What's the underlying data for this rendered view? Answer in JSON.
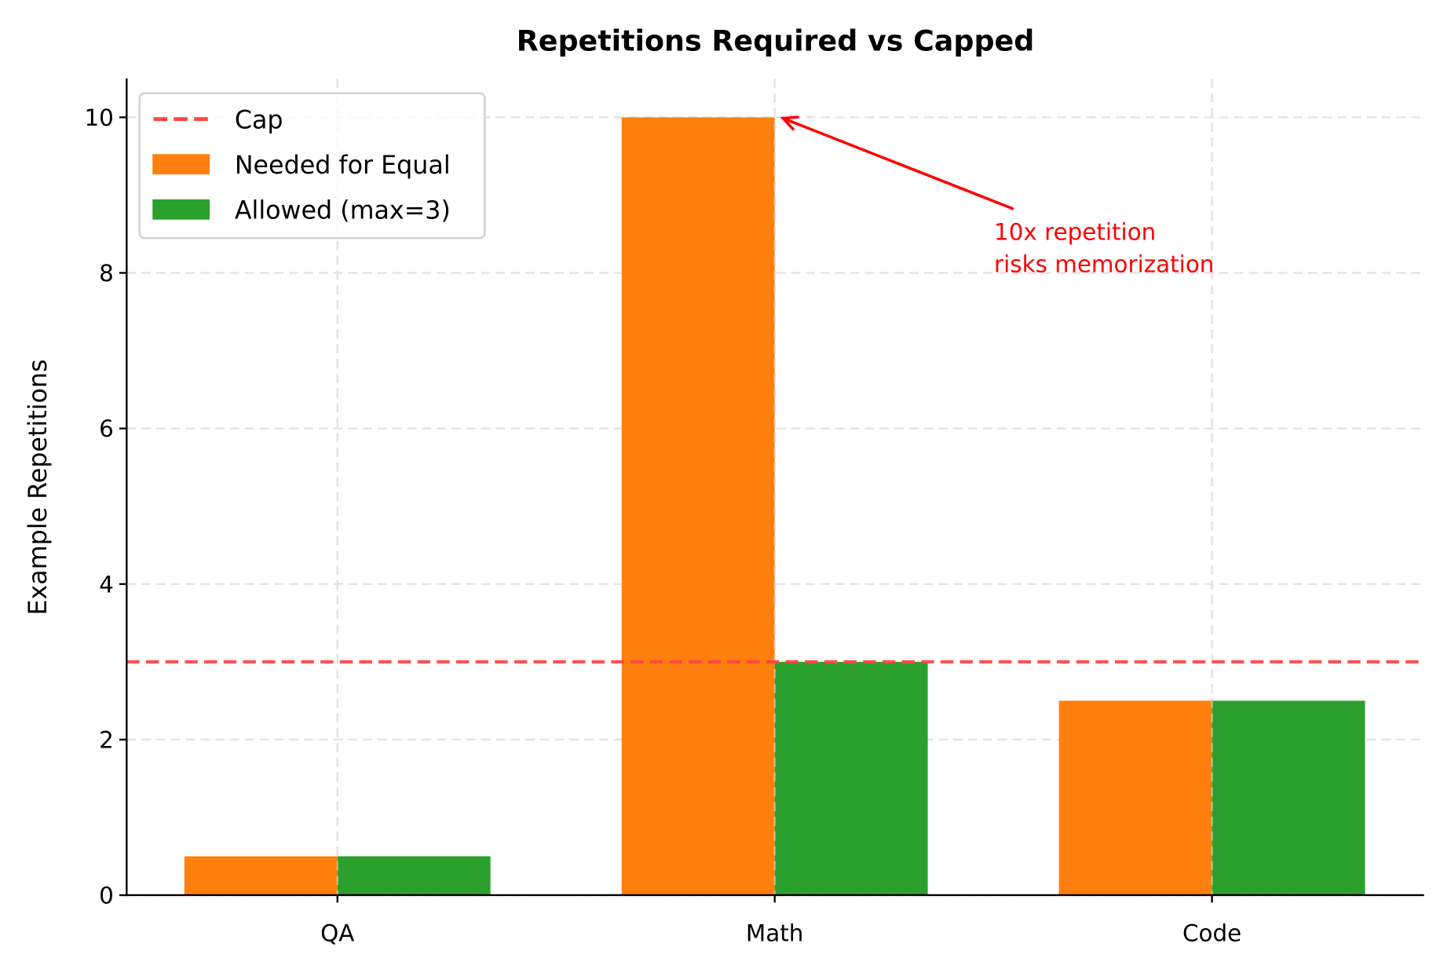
{
  "chart_data": {
    "type": "bar",
    "title": "Repetitions Required vs Capped",
    "xlabel": "",
    "ylabel": "Example Repetitions",
    "categories": [
      "QA",
      "Math",
      "Code"
    ],
    "series": [
      {
        "name": "Needed for Equal",
        "values": [
          0.5,
          10,
          2.5
        ],
        "color": "#ff7f0e"
      },
      {
        "name": "Allowed (max=3)",
        "values": [
          0.5,
          3,
          2.5
        ],
        "color": "#2ca02c"
      }
    ],
    "reference_line": {
      "name": "Cap",
      "y": 3,
      "color": "#ff4444",
      "style": "dashed"
    },
    "yticks": [
      0,
      2,
      4,
      6,
      8,
      10
    ],
    "ylim": [
      0,
      10.5
    ],
    "grid": true,
    "legend_position": "upper-left",
    "annotation": {
      "lines": [
        "10x repetition",
        "risks memorization"
      ],
      "target": {
        "category": "Math",
        "y": 10
      },
      "color": "#ff0000"
    }
  }
}
